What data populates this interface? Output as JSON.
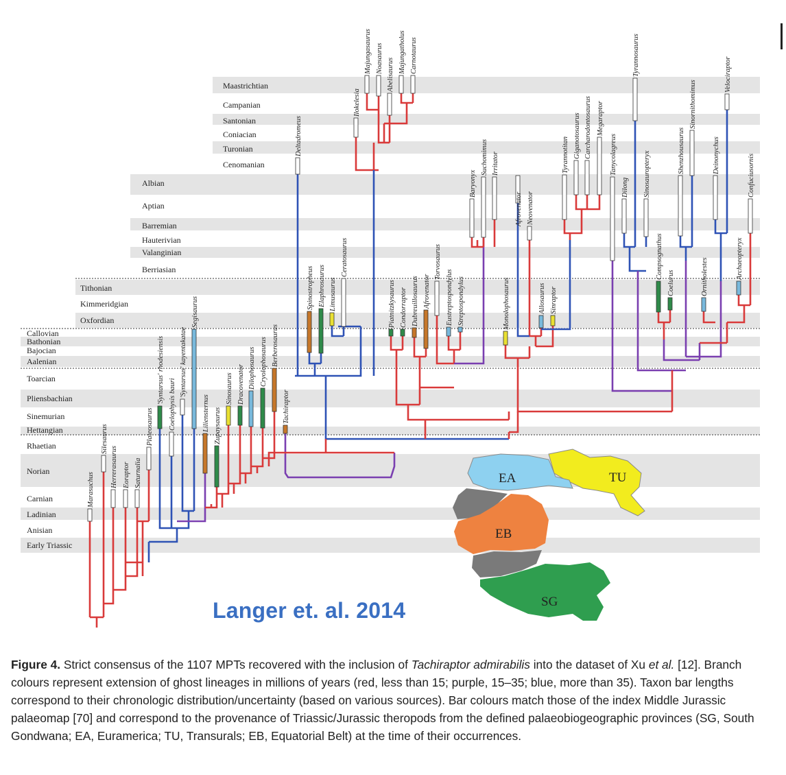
{
  "stages": {
    "upper": [
      "Maastrichtian",
      "Campanian",
      "Santonian",
      "Coniacian",
      "Turonian",
      "Cenomanian"
    ],
    "lower_cretaceous": [
      "Albian",
      "Aptian",
      "Barremian",
      "Hauterivian",
      "Valanginian",
      "Berriasian"
    ],
    "upper_jurassic": [
      "Tithonian",
      "Kimmeridgian",
      "Oxfordian"
    ],
    "middle_jurassic": [
      "Callovian",
      "Bathonian",
      "Bajocian",
      "Aalenian"
    ],
    "lower_jurassic": [
      "Toarcian",
      "Pliensbachian",
      "Sinemurian",
      "Hettangian"
    ],
    "triassic": [
      "Rhaetian",
      "Norian",
      "Carnian",
      "Ladinian",
      "Anisian",
      "Early Triassic"
    ]
  },
  "taxa": [
    "Marasuchus",
    "Silesaurus",
    "Herrerasaurus",
    "Eoraptor",
    "Saturnalia",
    "Plateosaurus",
    "'Syntarsus' rhodesiensis",
    "Coelophysis bauri",
    "'Syntarsus' kayentakatae",
    "Segisaurus",
    "Liliensternus",
    "Zupaysaurus",
    "Sinosaurus",
    "Dracovenator",
    "Dilophosaurus",
    "Cryolophosaurus",
    "Berberosaurus",
    "Tachiraptor",
    "Spinostropheus",
    "Elaphrosaurus",
    "Limusaurus",
    "Ceratosaurus",
    "Deltadromeus",
    "Ilokelesia",
    "Majungasaurus",
    "Noasaurus",
    "Abelisaurus",
    "Majungatholus",
    "Carnotaurus",
    "Piatnitzkysaurus",
    "Condorraptor",
    "Dubreuillosaurus",
    "Afrovenator",
    "Torvosaurus",
    "Eustreptospondylus",
    "Streptospondylus",
    "Baryonyx",
    "Suchomimus",
    "Irritator",
    "Monolophosaurus",
    "Afrovenator",
    "Neovenator",
    "Allosaurus",
    "Sinraptor",
    "Tyrannotitan",
    "Giganotosaurus",
    "Carcharodontosaurus",
    "Megaraptor",
    "Tanycolagreus",
    "Dilong",
    "Tyrannosaurus",
    "Sinosauropteryx",
    "Compsognathus",
    "Coelurus",
    "Shenzhousaurus",
    "Sinornithomimus",
    "Ornitholestes",
    "Deinonychus",
    "Velociraptor",
    "Archaeopteryx",
    "Confuciusornis"
  ],
  "map": {
    "regions": [
      {
        "code": "EA",
        "name": "Euramerica",
        "color": "#8ed1f0"
      },
      {
        "code": "TU",
        "name": "Transurals",
        "color": "#f2ec1e"
      },
      {
        "code": "EB",
        "name": "Equatorial Belt",
        "color": "#ee8240"
      },
      {
        "code": "SG",
        "name": "South Gondwana",
        "color": "#2f9e4f"
      }
    ],
    "gap_color": "#7a7a7a"
  },
  "branch_colors": {
    "red": "#d93a3a",
    "purple": "#7a3fb0",
    "blue": "#2e52b5"
  },
  "bar_colors": {
    "green": "#2f8a4a",
    "orange": "#c6772a",
    "blue": "#79b9dc",
    "yellow": "#e9e033",
    "white": "#ffffff"
  },
  "credit": "Langer et. al. 2014",
  "caption": {
    "lead": "Figure 4.",
    "part1": " Strict consensus of the 1107 MPTs recovered with the inclusion of ",
    "taxon": "Tachiraptor admirabilis",
    "part2": " into the dataset of Xu ",
    "etal": "et al.",
    "part3": " [12]. Branch colours represent extension of ghost lineages in millions of years (red, less than 15; purple, 15–35; blue, more than 35). Taxon bar lengths correspond to their chronologic distribution/uncertainty (based on various sources). Bar colours match those of the index Middle Jurassic palaeomap [70] and correspond to the provenance of Triassic/Jurassic theropods from the defined palaeobiogeographic provinces (SG, South Gondwana; EA, Euramerica; TU, Transurals; EB, Equatorial Belt) at the time of their occurrences."
  }
}
